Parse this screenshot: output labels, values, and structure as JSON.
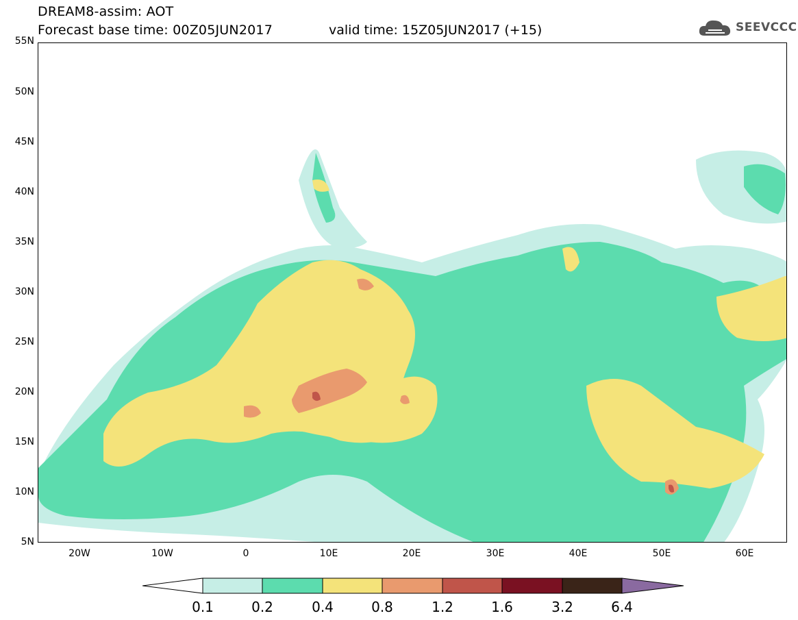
{
  "header": {
    "title_line1": "DREAM8-assim: AOT",
    "title_line2": "Forecast base time: 00Z05JUN2017",
    "valid_time": "valid time: 15Z05JUN2017 (+15)"
  },
  "logo": {
    "text": "SEEVCCC"
  },
  "axes": {
    "lat_labels": [
      "55N",
      "50N",
      "45N",
      "40N",
      "35N",
      "30N",
      "25N",
      "20N",
      "15N",
      "10N",
      "5N"
    ],
    "lon_labels": [
      "20W",
      "10W",
      "0",
      "10E",
      "20E",
      "30E",
      "40E",
      "50E",
      "60E"
    ],
    "lon_range": [
      -25,
      65
    ],
    "lat_range": [
      5,
      55
    ]
  },
  "colorbar": {
    "thresholds": [
      "0.1",
      "0.2",
      "0.4",
      "0.8",
      "1.2",
      "1.6",
      "3.2",
      "6.4"
    ],
    "colors": [
      "#c6eee6",
      "#5cdcae",
      "#f4e37a",
      "#e99a6e",
      "#c0554a",
      "#7a1122",
      "#3a2418",
      "#8a6aa0"
    ]
  }
}
